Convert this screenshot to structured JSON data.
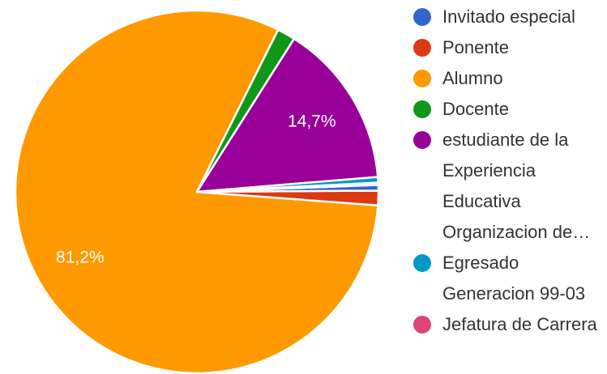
{
  "chart_data": {
    "type": "pie",
    "title": "",
    "legend_position": "right",
    "slices": [
      {
        "label": "Invitado especial",
        "value": 0.5,
        "color": "#3366cc",
        "data_label": ""
      },
      {
        "label": "Ponente",
        "value": 1.3,
        "color": "#dc3912",
        "data_label": ""
      },
      {
        "label": "Alumno",
        "value": 81.2,
        "color": "#ff9900",
        "data_label": "81,2%"
      },
      {
        "label": "Docente",
        "value": 1.6,
        "color": "#109618",
        "data_label": ""
      },
      {
        "label": "estudiante de la Experiencia Educativa Organizacion de…",
        "value": 14.7,
        "color": "#990099",
        "data_label": "14,7%"
      },
      {
        "label": "Egresado Generacion 99-03",
        "value": 0.5,
        "color": "#0099c6",
        "data_label": ""
      },
      {
        "label": "Jefatura de Carrera",
        "value": 0.2,
        "color": "#dd4477",
        "data_label": ""
      }
    ]
  }
}
